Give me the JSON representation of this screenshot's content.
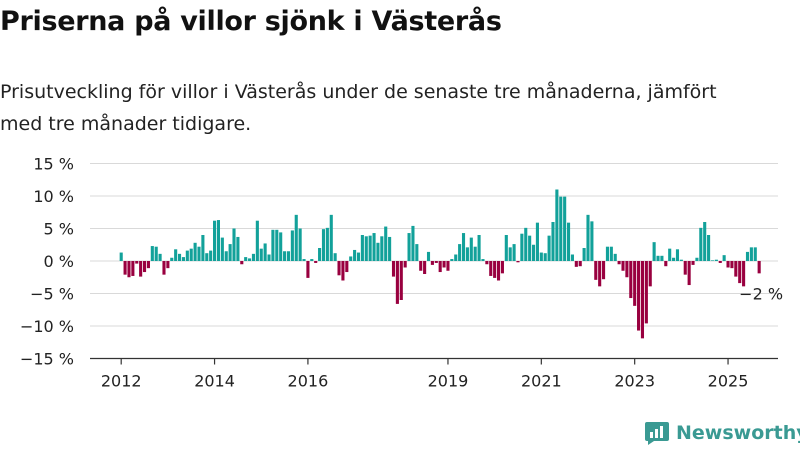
{
  "title": "Priserna på villor sjönk i Västerås",
  "subtitle": "Prisutveckling för villor i Västerås under de senaste tre månaderna, jämfört med tre månader tidigare.",
  "brand": "Newsworthy",
  "colors": {
    "positive": "#12a19a",
    "negative": "#99003f",
    "grid": "#d9d9d9",
    "axis": "#333333",
    "brand": "#3a9a93"
  },
  "chart_data": {
    "type": "bar",
    "x_unit": "month",
    "x_start": "2012-01",
    "x_ticks": [
      "2012",
      "2014",
      "2016",
      "2019",
      "2021",
      "2023",
      "2025"
    ],
    "y_ticks": [
      "15 %",
      "10 %",
      "5 %",
      "0 %",
      "−5 %",
      "−10 %",
      "−15 %"
    ],
    "ylim": [
      -15,
      15
    ],
    "last_value_label": "−2 %",
    "values": [
      1.3,
      -2.1,
      -2.5,
      -2.3,
      -0.4,
      -2.4,
      -1.7,
      -1.1,
      2.3,
      2.2,
      1.1,
      -2.1,
      -1.1,
      0.5,
      1.8,
      1.1,
      0.6,
      1.6,
      1.9,
      2.8,
      2.2,
      4.0,
      1.2,
      1.6,
      6.2,
      6.3,
      3.6,
      1.5,
      2.6,
      5.0,
      3.7,
      -0.5,
      0.6,
      0.4,
      1.1,
      6.2,
      1.9,
      2.7,
      1.0,
      4.8,
      4.8,
      4.4,
      1.5,
      1.5,
      4.7,
      7.1,
      5.0,
      0.3,
      -2.6,
      0.3,
      -0.3,
      2.0,
      4.9,
      5.1,
      7.1,
      1.2,
      -2.2,
      -3.0,
      -1.7,
      0.7,
      1.7,
      1.3,
      4.0,
      3.8,
      3.9,
      4.3,
      2.8,
      3.8,
      5.3,
      3.7,
      -2.4,
      -6.6,
      -6.0,
      -1.0,
      4.3,
      5.4,
      2.6,
      -1.5,
      -2.0,
      1.4,
      -0.6,
      -0.3,
      -1.7,
      -1.0,
      -1.5,
      0.3,
      1.0,
      2.6,
      4.3,
      2.1,
      3.6,
      2.2,
      4.0,
      0.3,
      -0.5,
      -2.3,
      -2.6,
      -3.0,
      -1.9,
      4.0,
      2.1,
      2.6,
      -0.2,
      4.2,
      5.1,
      3.9,
      2.5,
      5.9,
      1.3,
      1.2,
      3.9,
      6.0,
      11.0,
      9.9,
      9.9,
      5.9,
      1.0,
      -0.9,
      -0.8,
      2.0,
      7.1,
      6.1,
      -2.9,
      -3.9,
      -2.8,
      2.2,
      2.2,
      1.1,
      -0.5,
      -1.5,
      -2.5,
      -5.7,
      -6.9,
      -10.7,
      -11.9,
      -9.6,
      -3.9,
      2.9,
      0.8,
      0.8,
      -0.8,
      1.9,
      0.5,
      1.8,
      0.2,
      -2.1,
      -3.7,
      -0.6,
      0.5,
      5.1,
      6.0,
      4.0,
      0.1,
      0.2,
      -0.3,
      0.9,
      -1.0,
      -1.1,
      -2.4,
      -3.4,
      -3.9,
      1.4,
      2.1,
      2.1,
      -1.9
    ]
  }
}
